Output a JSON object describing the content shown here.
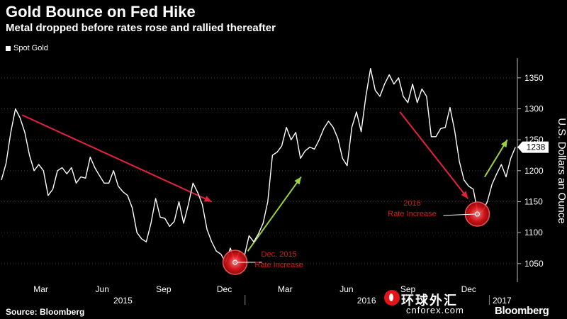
{
  "title": "Gold Bounce on Fed Hike",
  "subtitle": "Metal dropped before rates rose and rallied thereafter",
  "source": "Source: Bloomberg",
  "brand": "Bloomberg",
  "watermark": {
    "cn": "环球外汇",
    "en": "cnforex.com"
  },
  "colors": {
    "line": "#ffffff",
    "down_arrow": "#e8203f",
    "up_arrow": "#9bd33c",
    "marker": "#e3151a",
    "annotation": "#e3151a"
  },
  "chart_data": {
    "type": "line",
    "title": "Gold Bounce on Fed Hike",
    "subtitle": "Metal dropped before rates rose and rallied thereafter",
    "ylabel": "U.S. Dollars an Ounce",
    "ylim": [
      1020,
      1375
    ],
    "y_ticks": [
      1050,
      1100,
      1150,
      1200,
      1250,
      1300,
      1350
    ],
    "xlim": [
      "2015-01-01",
      "2017-02-12"
    ],
    "x_ticks": [
      {
        "date": "2015-03-01",
        "label": "Mar"
      },
      {
        "date": "2015-06-01",
        "label": "Jun"
      },
      {
        "date": "2015-09-01",
        "label": "Sep"
      },
      {
        "date": "2015-12-01",
        "label": "Dec"
      },
      {
        "date": "2016-03-01",
        "label": "Mar"
      },
      {
        "date": "2016-06-01",
        "label": "Jun"
      },
      {
        "date": "2016-09-01",
        "label": "Sep"
      },
      {
        "date": "2016-12-01",
        "label": "Dec"
      }
    ],
    "year_labels": [
      {
        "date": "2015-07-02",
        "label": "2015"
      },
      {
        "date": "2016-07-01",
        "label": "2016"
      },
      {
        "date": "2017-01-20",
        "label": "2017"
      }
    ],
    "series": [
      {
        "name": "Spot Gold",
        "last_value": "1238",
        "points": [
          [
            "2015-01-01",
            1185
          ],
          [
            "2015-01-08",
            1212
          ],
          [
            "2015-01-15",
            1262
          ],
          [
            "2015-01-22",
            1300
          ],
          [
            "2015-01-29",
            1285
          ],
          [
            "2015-02-05",
            1262
          ],
          [
            "2015-02-12",
            1225
          ],
          [
            "2015-02-19",
            1200
          ],
          [
            "2015-02-26",
            1210
          ],
          [
            "2015-03-05",
            1200
          ],
          [
            "2015-03-12",
            1160
          ],
          [
            "2015-03-19",
            1170
          ],
          [
            "2015-03-26",
            1200
          ],
          [
            "2015-04-02",
            1205
          ],
          [
            "2015-04-09",
            1195
          ],
          [
            "2015-04-16",
            1205
          ],
          [
            "2015-04-23",
            1180
          ],
          [
            "2015-04-30",
            1190
          ],
          [
            "2015-05-07",
            1188
          ],
          [
            "2015-05-14",
            1222
          ],
          [
            "2015-05-21",
            1205
          ],
          [
            "2015-05-28",
            1192
          ],
          [
            "2015-06-04",
            1180
          ],
          [
            "2015-06-11",
            1180
          ],
          [
            "2015-06-18",
            1200
          ],
          [
            "2015-06-25",
            1175
          ],
          [
            "2015-07-02",
            1166
          ],
          [
            "2015-07-09",
            1160
          ],
          [
            "2015-07-16",
            1140
          ],
          [
            "2015-07-23",
            1100
          ],
          [
            "2015-07-30",
            1090
          ],
          [
            "2015-08-06",
            1085
          ],
          [
            "2015-08-13",
            1115
          ],
          [
            "2015-08-20",
            1155
          ],
          [
            "2015-08-27",
            1125
          ],
          [
            "2015-09-03",
            1123
          ],
          [
            "2015-09-10",
            1110
          ],
          [
            "2015-09-17",
            1118
          ],
          [
            "2015-09-24",
            1150
          ],
          [
            "2015-10-01",
            1115
          ],
          [
            "2015-10-08",
            1145
          ],
          [
            "2015-10-15",
            1180
          ],
          [
            "2015-10-22",
            1165
          ],
          [
            "2015-10-29",
            1145
          ],
          [
            "2015-11-05",
            1105
          ],
          [
            "2015-11-12",
            1085
          ],
          [
            "2015-11-19",
            1070
          ],
          [
            "2015-11-26",
            1065
          ],
          [
            "2015-12-03",
            1052
          ],
          [
            "2015-12-10",
            1075
          ],
          [
            "2015-12-17",
            1052
          ],
          [
            "2015-12-24",
            1070
          ],
          [
            "2015-12-31",
            1062
          ],
          [
            "2016-01-07",
            1095
          ],
          [
            "2016-01-14",
            1085
          ],
          [
            "2016-01-21",
            1098
          ],
          [
            "2016-01-28",
            1115
          ],
          [
            "2016-02-04",
            1150
          ],
          [
            "2016-02-11",
            1225
          ],
          [
            "2016-02-18",
            1230
          ],
          [
            "2016-02-25",
            1240
          ],
          [
            "2016-03-03",
            1270
          ],
          [
            "2016-03-10",
            1250
          ],
          [
            "2016-03-17",
            1262
          ],
          [
            "2016-03-24",
            1220
          ],
          [
            "2016-03-31",
            1232
          ],
          [
            "2016-04-07",
            1238
          ],
          [
            "2016-04-14",
            1235
          ],
          [
            "2016-04-21",
            1250
          ],
          [
            "2016-04-28",
            1268
          ],
          [
            "2016-05-05",
            1280
          ],
          [
            "2016-05-12",
            1270
          ],
          [
            "2016-05-19",
            1252
          ],
          [
            "2016-05-26",
            1220
          ],
          [
            "2016-06-02",
            1208
          ],
          [
            "2016-06-09",
            1270
          ],
          [
            "2016-06-16",
            1295
          ],
          [
            "2016-06-23",
            1263
          ],
          [
            "2016-06-30",
            1320
          ],
          [
            "2016-07-07",
            1365
          ],
          [
            "2016-07-14",
            1330
          ],
          [
            "2016-07-21",
            1320
          ],
          [
            "2016-07-28",
            1340
          ],
          [
            "2016-08-04",
            1355
          ],
          [
            "2016-08-11",
            1340
          ],
          [
            "2016-08-18",
            1350
          ],
          [
            "2016-08-25",
            1320
          ],
          [
            "2016-09-01",
            1310
          ],
          [
            "2016-09-08",
            1340
          ],
          [
            "2016-09-15",
            1310
          ],
          [
            "2016-09-22",
            1332
          ],
          [
            "2016-09-29",
            1320
          ],
          [
            "2016-10-06",
            1255
          ],
          [
            "2016-10-13",
            1255
          ],
          [
            "2016-10-20",
            1268
          ],
          [
            "2016-10-27",
            1270
          ],
          [
            "2016-11-03",
            1302
          ],
          [
            "2016-11-10",
            1265
          ],
          [
            "2016-11-17",
            1215
          ],
          [
            "2016-11-24",
            1185
          ],
          [
            "2016-12-01",
            1175
          ],
          [
            "2016-12-08",
            1170
          ],
          [
            "2016-12-15",
            1130
          ],
          [
            "2016-12-22",
            1135
          ],
          [
            "2016-12-29",
            1150
          ],
          [
            "2017-01-05",
            1178
          ],
          [
            "2017-01-12",
            1195
          ],
          [
            "2017-01-19",
            1210
          ],
          [
            "2017-01-26",
            1190
          ],
          [
            "2017-02-02",
            1220
          ],
          [
            "2017-02-09",
            1238
          ]
        ]
      }
    ],
    "markers": [
      {
        "date": "2015-12-17",
        "value": 1052,
        "label_lines": [
          "Dec. 2015",
          "Rate Increase"
        ]
      },
      {
        "date": "2016-12-14",
        "value": 1130,
        "label_lines": [
          "2016",
          "Rate Increase"
        ]
      }
    ],
    "arrows": [
      {
        "kind": "down",
        "from": [
          "2015-02-01",
          1290
        ],
        "to": [
          "2015-11-12",
          1150
        ]
      },
      {
        "kind": "up",
        "from": [
          "2016-01-05",
          1070
        ],
        "to": [
          "2016-03-25",
          1190
        ]
      },
      {
        "kind": "down",
        "from": [
          "2016-08-20",
          1295
        ],
        "to": [
          "2016-11-30",
          1155
        ]
      },
      {
        "kind": "up",
        "from": [
          "2016-12-25",
          1190
        ],
        "to": [
          "2017-01-28",
          1250
        ]
      }
    ]
  }
}
